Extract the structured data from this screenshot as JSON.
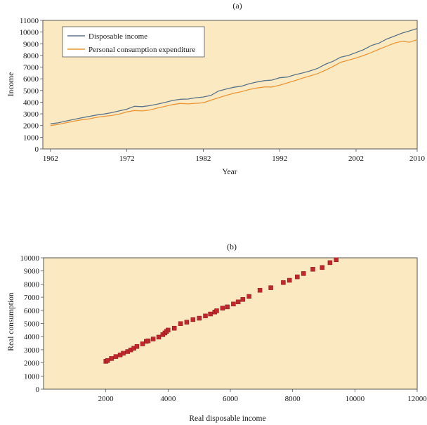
{
  "chart_data": [
    {
      "type": "line",
      "panel_label": "(a)",
      "xlabel": "Year",
      "ylabel": "Income",
      "xlim": [
        1961,
        2010
      ],
      "ylim": [
        0,
        11000
      ],
      "xticks": [
        1962,
        1972,
        1982,
        1992,
        2002,
        2010
      ],
      "yticks": [
        0,
        1000,
        2000,
        3000,
        4000,
        5000,
        6000,
        7000,
        8000,
        9000,
        10000,
        11000
      ],
      "grid": false,
      "legend_position": "top-left",
      "background_color": "#fbe9c1",
      "series": [
        {
          "name": "Disposable income",
          "color": "#5b7489",
          "x": [
            1962,
            1963,
            1964,
            1965,
            1966,
            1967,
            1968,
            1969,
            1970,
            1971,
            1972,
            1973,
            1974,
            1975,
            1976,
            1977,
            1978,
            1979,
            1980,
            1981,
            1982,
            1983,
            1984,
            1985,
            1986,
            1987,
            1988,
            1989,
            1990,
            1991,
            1992,
            1993,
            1994,
            1995,
            1996,
            1997,
            1998,
            1999,
            2000,
            2001,
            2002,
            2003,
            2004,
            2005,
            2006,
            2007,
            2008,
            2009,
            2010
          ],
          "values": [
            2150,
            2230,
            2380,
            2520,
            2650,
            2780,
            2900,
            2990,
            3100,
            3250,
            3400,
            3650,
            3620,
            3700,
            3830,
            3980,
            4150,
            4250,
            4270,
            4380,
            4440,
            4580,
            4950,
            5120,
            5280,
            5370,
            5580,
            5720,
            5840,
            5890,
            6090,
            6150,
            6350,
            6500,
            6680,
            6900,
            7250,
            7500,
            7850,
            8000,
            8250,
            8500,
            8850,
            9050,
            9400,
            9650,
            9900,
            10100,
            10300
          ]
        },
        {
          "name": "Personal consumption expenditure",
          "color": "#e9973b",
          "x": [
            1962,
            1963,
            1964,
            1965,
            1966,
            1967,
            1968,
            1969,
            1970,
            1971,
            1972,
            1973,
            1974,
            1975,
            1976,
            1977,
            1978,
            1979,
            1980,
            1981,
            1982,
            1983,
            1984,
            1985,
            1986,
            1987,
            1988,
            1989,
            1990,
            1991,
            1992,
            1993,
            1994,
            1995,
            1996,
            1997,
            1998,
            1999,
            2000,
            2001,
            2002,
            2003,
            2004,
            2005,
            2006,
            2007,
            2008,
            2009,
            2010
          ],
          "values": [
            2000,
            2100,
            2230,
            2370,
            2480,
            2560,
            2700,
            2790,
            2860,
            2980,
            3170,
            3290,
            3250,
            3330,
            3500,
            3640,
            3800,
            3890,
            3850,
            3900,
            3950,
            4170,
            4380,
            4580,
            4760,
            4900,
            5080,
            5210,
            5300,
            5300,
            5460,
            5650,
            5850,
            6050,
            6250,
            6450,
            6740,
            7060,
            7420,
            7600,
            7780,
            8000,
            8250,
            8530,
            8790,
            9050,
            9200,
            9130,
            9350
          ]
        }
      ]
    },
    {
      "type": "scatter",
      "panel_label": "(b)",
      "xlabel": "Real disposable income",
      "ylabel": "Real consumption",
      "xlim": [
        0,
        12000
      ],
      "ylim": [
        0,
        10000
      ],
      "xticks": [
        2000,
        4000,
        6000,
        8000,
        10000,
        12000
      ],
      "yticks": [
        0,
        1000,
        2000,
        3000,
        4000,
        5000,
        6000,
        7000,
        8000,
        9000,
        10000
      ],
      "grid": false,
      "background_color": "#fbe9c1",
      "marker_color": "#c0262b",
      "points": [
        [
          2000,
          2120
        ],
        [
          2060,
          2180
        ],
        [
          2180,
          2330
        ],
        [
          2320,
          2480
        ],
        [
          2460,
          2610
        ],
        [
          2560,
          2730
        ],
        [
          2700,
          2860
        ],
        [
          2800,
          2990
        ],
        [
          2900,
          3120
        ],
        [
          3000,
          3250
        ],
        [
          3180,
          3450
        ],
        [
          3300,
          3640
        ],
        [
          3360,
          3680
        ],
        [
          3520,
          3820
        ],
        [
          3700,
          3960
        ],
        [
          3830,
          4150
        ],
        [
          3900,
          4280
        ],
        [
          3950,
          4400
        ],
        [
          4000,
          4500
        ],
        [
          4200,
          4640
        ],
        [
          4400,
          4990
        ],
        [
          4600,
          5100
        ],
        [
          4800,
          5300
        ],
        [
          5000,
          5400
        ],
        [
          5200,
          5570
        ],
        [
          5360,
          5720
        ],
        [
          5500,
          5870
        ],
        [
          5560,
          5970
        ],
        [
          5750,
          6170
        ],
        [
          5900,
          6260
        ],
        [
          6100,
          6480
        ],
        [
          6250,
          6640
        ],
        [
          6400,
          6830
        ],
        [
          6600,
          7060
        ],
        [
          6950,
          7530
        ],
        [
          7300,
          7720
        ],
        [
          7700,
          8120
        ],
        [
          7900,
          8290
        ],
        [
          8150,
          8550
        ],
        [
          8350,
          8800
        ],
        [
          8650,
          9130
        ],
        [
          8950,
          9260
        ],
        [
          9200,
          9630
        ],
        [
          9400,
          9850
        ]
      ]
    }
  ]
}
